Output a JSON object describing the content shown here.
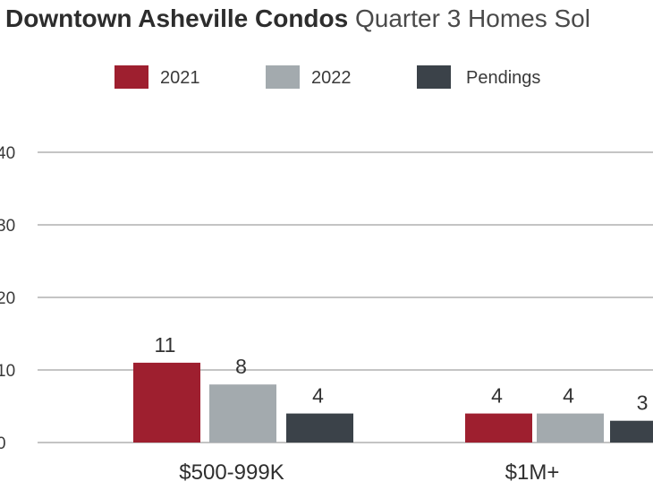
{
  "chart_data": {
    "type": "bar",
    "title": "Downtown Asheville Condos",
    "subtitle": "Quarter 3 Homes Sol",
    "categories": [
      "$500-999K",
      "$1M+"
    ],
    "series": [
      {
        "name": "2021",
        "values": [
          11,
          4
        ],
        "color": "#9e1f2f"
      },
      {
        "name": "2022",
        "values": [
          8,
          4
        ],
        "color": "#a3aaae"
      },
      {
        "name": "Pendings",
        "values": [
          4,
          3
        ],
        "color": "#3b4249"
      }
    ],
    "yticks": [
      "0",
      "10",
      "20",
      "30",
      "40"
    ],
    "ylim": [
      0,
      40
    ],
    "grid": true,
    "legend": "top-center"
  }
}
